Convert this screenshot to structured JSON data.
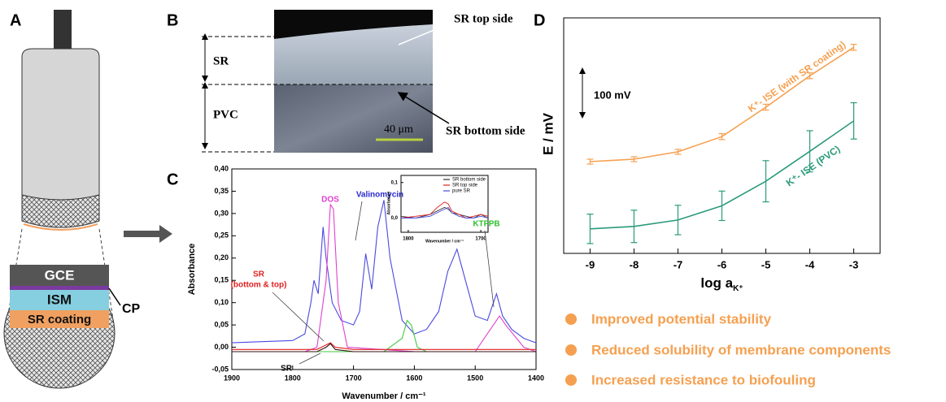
{
  "panel_labels": [
    "A",
    "B",
    "C",
    "D"
  ],
  "panel_a": {
    "layers": [
      "GCE",
      "ISM",
      "SR coating"
    ],
    "cp": "CP"
  },
  "panel_b": {
    "sr_top": "SR top side",
    "sr": "SR",
    "pvc": "PVC",
    "sr_bottom": "SR bottom side",
    "scale": "40 μm"
  },
  "bullets": [
    "Improved potential stability",
    "Reduced solubility of membrane components",
    "Increased resistance to biofouling"
  ],
  "chart_data": [
    {
      "type": "line",
      "x_label": "Wavenumber / cm⁻¹",
      "y_label": "Absorbance",
      "xlim": [
        1900,
        1400
      ],
      "ylim": [
        -0.05,
        0.4
      ],
      "xticks": [
        1900,
        1800,
        1700,
        1600,
        1500,
        1400
      ],
      "yticks": [
        {
          "value": 0.4,
          "label": "0,40"
        },
        {
          "value": 0.35,
          "label": "0,35"
        },
        {
          "value": 0.3,
          "label": "0,30"
        },
        {
          "value": 0.25,
          "label": "0,25"
        },
        {
          "value": 0.2,
          "label": "0,20"
        },
        {
          "value": 0.15,
          "label": "0,15"
        },
        {
          "value": 0.1,
          "label": "0,10"
        },
        {
          "value": 0.05,
          "label": "0,05"
        },
        {
          "value": 0,
          "label": "0,00"
        },
        {
          "value": -0.05,
          "label": "-0,05"
        }
      ],
      "annotations": [
        {
          "text": "DOS",
          "color": "#e040d0"
        },
        {
          "text": "Valinomycin",
          "color": "#2a2ad0"
        },
        {
          "text": "KTFPB",
          "color": "#30c030"
        },
        {
          "text": "SR",
          "color": "#e02020"
        },
        {
          "text": "(bottom & top)",
          "color": "#e02020"
        },
        {
          "text": "SR",
          "color": "#000000"
        }
      ],
      "series": [
        {
          "color": "#4a4ae0",
          "x": [
            1900,
            1800,
            1780,
            1770,
            1765,
            1758,
            1750,
            1745,
            1735,
            1720,
            1700,
            1690,
            1680,
            1670,
            1660,
            1650,
            1640,
            1620,
            1600,
            1580,
            1560,
            1545,
            1530,
            1520,
            1500,
            1480,
            1470,
            1465,
            1455,
            1440,
            1420,
            1400
          ],
          "values": [
            0.01,
            0.015,
            0.03,
            0.1,
            0.15,
            0.12,
            0.27,
            0.2,
            0.1,
            0.06,
            0.05,
            0.08,
            0.21,
            0.13,
            0.27,
            0.33,
            0.2,
            0.06,
            0.03,
            0.04,
            0.08,
            0.17,
            0.22,
            0.17,
            0.07,
            0.06,
            0.1,
            0.12,
            0.07,
            0.04,
            0.02,
            0.01
          ]
        },
        {
          "color": "#e040d0",
          "x": [
            1900,
            1780,
            1760,
            1745,
            1738,
            1733,
            1725,
            1710,
            1600,
            1500,
            1470,
            1460,
            1450,
            1420,
            1400
          ],
          "values": [
            -0.01,
            -0.01,
            0,
            0.15,
            0.32,
            0.31,
            0.1,
            0,
            -0.01,
            -0.01,
            0.05,
            0.07,
            0.05,
            0,
            -0.01
          ]
        },
        {
          "color": "#40c840",
          "x": [
            1900,
            1650,
            1620,
            1612,
            1605,
            1595,
            1580,
            1500,
            1400
          ],
          "values": [
            -0.01,
            -0.01,
            0.02,
            0.06,
            0.05,
            0,
            -0.01,
            -0.01,
            -0.01
          ]
        },
        {
          "color": "#e02020",
          "x": [
            1900,
            1760,
            1745,
            1738,
            1730,
            1700,
            1600,
            1500,
            1400
          ],
          "values": [
            -0.005,
            -0.005,
            0.005,
            0.01,
            0,
            -0.005,
            -0.005,
            -0.005,
            -0.005
          ]
        },
        {
          "color": "#3a1010",
          "x": [
            1900,
            1760,
            1745,
            1738,
            1730,
            1700,
            1600,
            1500,
            1400
          ],
          "values": [
            -0.01,
            -0.01,
            0,
            0.008,
            -0.005,
            -0.01,
            -0.01,
            -0.01,
            -0.01
          ]
        }
      ]
    },
    {
      "type": "line",
      "x_label": "Wavenumber / cm⁻¹",
      "y_label": "Absorbance",
      "xlim": [
        1810,
        1690
      ],
      "ylim": [
        -0.04,
        0.12
      ],
      "xticks": [
        1800,
        1700
      ],
      "yticks": [
        {
          "value": 0.1,
          "label": "0,1"
        },
        {
          "value": 0,
          "label": "0,0"
        }
      ],
      "x": [
        1810,
        1790,
        1770,
        1760,
        1750,
        1745,
        1740,
        1730,
        1720,
        1710,
        1700,
        1690
      ],
      "series": [
        {
          "name": "SR bottom side",
          "color": "#333333",
          "values": [
            0.005,
            0,
            0.01,
            0.02,
            0.03,
            0.025,
            0.015,
            0.01,
            0.005,
            0,
            0.01,
            0
          ]
        },
        {
          "name": "SR top side",
          "color": "#e02020",
          "values": [
            0,
            0.005,
            0.01,
            0.03,
            0.045,
            0.04,
            0.02,
            0.01,
            0,
            0.005,
            0.01,
            0.005
          ]
        },
        {
          "name": "pure SR",
          "color": "#4a4ae0",
          "values": [
            0,
            0,
            0.005,
            0.015,
            0.025,
            0.03,
            0.015,
            0.005,
            0,
            0,
            0.005,
            0
          ]
        }
      ]
    },
    {
      "type": "line",
      "x_label": "log a",
      "x_label_sub": "K⁺",
      "y_label": "E / mV",
      "scale_label": "100 mV",
      "xlim": [
        -9.6,
        -2.4
      ],
      "ylim": [
        0,
        480
      ],
      "xticks": [
        -9,
        -8,
        -7,
        -6,
        -5,
        -4,
        -3
      ],
      "x": [
        -9,
        -8,
        -7,
        -6,
        -5,
        -4,
        -3
      ],
      "series": [
        {
          "name": "K⁺- ISE (with SR coating)",
          "color": "#f5a050",
          "values": [
            187,
            192,
            207,
            238,
            298,
            362,
            420
          ],
          "errors": [
            5,
            5,
            5,
            6,
            6,
            6,
            6
          ]
        },
        {
          "name": "K⁺- ISE (PVC)",
          "color": "#2a9a7a",
          "values": [
            50,
            55,
            68,
            97,
            147,
            208,
            270
          ],
          "errors": [
            30,
            33,
            30,
            30,
            42,
            42,
            37
          ]
        }
      ]
    }
  ]
}
